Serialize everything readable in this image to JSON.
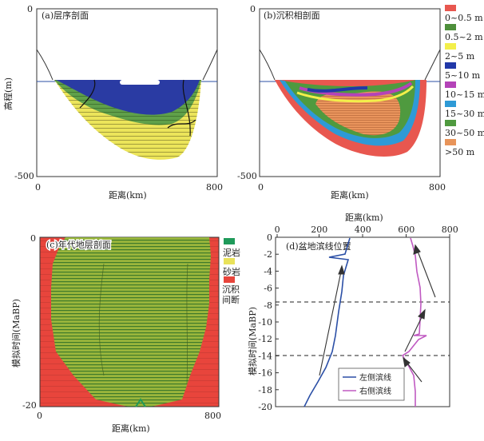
{
  "panel_a": {
    "label": "(a)层序剖面",
    "y_label": "高程(m)",
    "y_top": "0",
    "y_bottom": "-500",
    "x_left": "0",
    "x_right": "800",
    "x_label": "距离(km)"
  },
  "panel_b": {
    "label": "(b)沉积相剖面",
    "y_top": "0",
    "y_bottom": "-500",
    "x_left": "0",
    "x_right": "800",
    "x_label": "距离(km)",
    "legend": [
      {
        "text": "0~0.5 m",
        "color": "#e8574f"
      },
      {
        "text": "0.5~2 m",
        "color": "#4e8f3b"
      },
      {
        "text": "2~5 m",
        "color": "#f3ef4a"
      },
      {
        "text": "5~10 m",
        "color": "#2138a8"
      },
      {
        "text": "10~15 m",
        "color": "#b443b8"
      },
      {
        "text": "15~30 m",
        "color": "#2e9ad6"
      },
      {
        "text": "30~50 m",
        "color": "#4f9a3f"
      },
      {
        "text": ">50 m",
        "color": "#e8945a"
      }
    ]
  },
  "panel_c": {
    "label": "(c)年代地层剖面",
    "y_label": "模拟时间(MaBP)",
    "y_top": "0",
    "y_bottom": "-20",
    "x_left": "0",
    "x_right": "800",
    "x_label": "距离(km)",
    "legend": [
      {
        "text": "泥岩",
        "color": "#1f9a5a"
      },
      {
        "text": "砂岩",
        "color": "#e9e25a"
      },
      {
        "text": "沉积间断",
        "color": "#e8453c"
      }
    ]
  },
  "panel_d": {
    "label": "(d)盆地滨线位置",
    "x_label": "距离(km)",
    "x_ticks": [
      "0",
      "200",
      "400",
      "600",
      "800"
    ],
    "y_label": "模拟时间(MaBP)",
    "y_ticks": [
      "0",
      "-2",
      "-4",
      "-6",
      "-8",
      "-10",
      "-12",
      "-14",
      "-16",
      "-18",
      "-20"
    ],
    "series": [
      {
        "name": "左侧滨线",
        "color": "#2b4fa6"
      },
      {
        "name": "右侧滨线",
        "color": "#c05ac2"
      }
    ]
  }
}
